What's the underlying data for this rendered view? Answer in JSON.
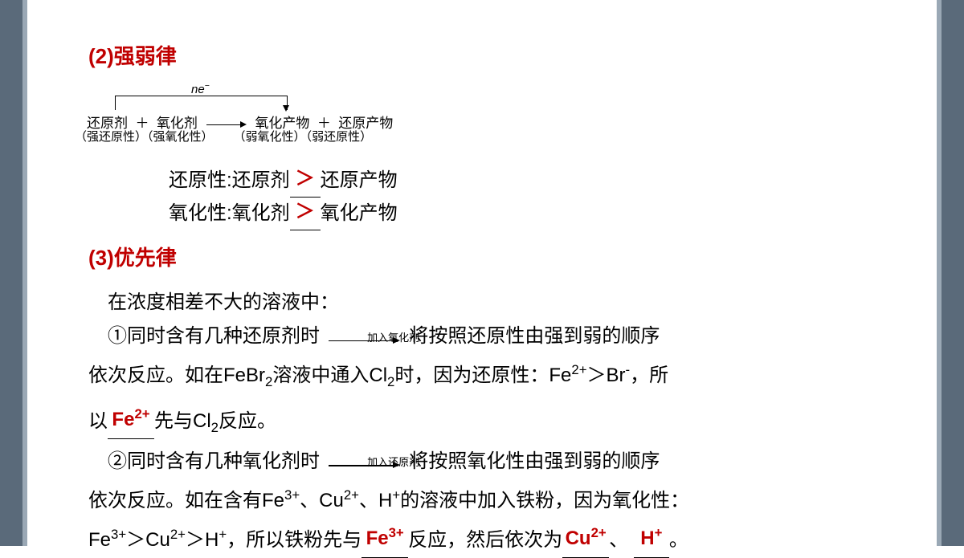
{
  "colors": {
    "side_border": "#5a6a7a",
    "inner_border": "#9aa8b5",
    "heading_red": "#c00000",
    "fill_red": "#c00000",
    "text": "#000000",
    "background": "#ffffff"
  },
  "section2": {
    "number": "(2)",
    "title": "强弱律",
    "diagram": {
      "ne_label": "ne⁻",
      "row1_reducer": "还原剂",
      "row1_plus": "＋",
      "row1_oxidizer": "氧化剂",
      "row1_ox_product": "氧化产物",
      "row1_plus2": "＋",
      "row1_red_product": "还原产物",
      "row2_reducer": "（强还原性）",
      "row2_oxidizer": "（强氧化性）",
      "row2_ox_product": "（弱氧化性）",
      "row2_red_product": "（弱还原性）"
    },
    "line1_pre": "还原性:还原剂",
    "line1_fill": "＞",
    "line1_post": "还原产物",
    "line2_pre": "氧化性:氧化剂",
    "line2_fill": "＞",
    "line2_post": "氧化产物"
  },
  "section3": {
    "number": "(3)",
    "title": "优先律",
    "intro": "在浓度相差不大的溶液中：",
    "p1_a": "①同时含有几种还原剂时",
    "p1_arrow": "加入氧化剂",
    "p1_b": "将按照还原性由强到弱的顺序",
    "p1_c_pre": "依次反应。如在FeBr",
    "p1_c_mid": "溶液中通入Cl",
    "p1_c_post": "时，因为还原性：Fe",
    "p1_c_tail": "＞Br",
    "p1_c_end": "，所",
    "p1_d_pre": "以",
    "p1_fill1": "Fe²⁺",
    "p1_d_post": "先与Cl",
    "p1_d_end": "反应。",
    "p2_a": "②同时含有几种氧化剂时",
    "p2_arrow": "加入还原剂",
    "p2_b": "将按照氧化性由强到弱的顺序",
    "p2_c": "依次反应。如在含有Fe",
    "p2_c2": "、Cu",
    "p2_c3": "、H",
    "p2_c4": "的溶液中加入铁粉，因为氧化性：",
    "p2_d_pre": "Fe",
    "p2_d_2": "＞Cu",
    "p2_d_3": "＞H",
    "p2_d_4": "，所以铁粉先与",
    "p2_fill_a": "Fe³⁺",
    "p2_d_5": "反应，然后依次为",
    "p2_fill_b": "Cu²⁺",
    "p2_d_6": "、",
    "p2_fill_c": "H⁺",
    "p2_d_7": "。"
  }
}
